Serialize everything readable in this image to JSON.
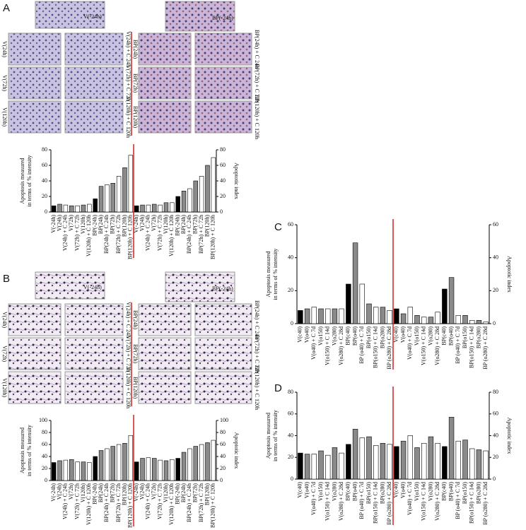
{
  "figure": {
    "panels": [
      {
        "label": "A",
        "controls": [
          "V(-24h)",
          "BP(-24h)"
        ],
        "left_rows": [
          [
            "V(24h)",
            "V(24h) + C 24h"
          ],
          [
            "V(72h)",
            "V(72h) + C 72h"
          ],
          [
            "V(120h)",
            "V(120h) + C 120h"
          ]
        ],
        "right_rows": [
          [
            "BP(24h)",
            "BP(24h) + C 24h"
          ],
          [
            "BP(72h)",
            "BP(72h) + C 72h"
          ],
          [
            "BP(120h)",
            "BP(120h) + C 120h"
          ]
        ]
      },
      {
        "label": "B",
        "controls": [
          "V(-24h)",
          "BP(-24h)"
        ],
        "left_rows": [
          [
            "V(24h)",
            "V(24h) + C 24h"
          ],
          [
            "V(72h)",
            "V(72h) + C 72h"
          ],
          [
            "V(120h)",
            "V(120h) + C 120h"
          ]
        ],
        "right_rows": [
          [
            "BP(24h)",
            "BP(24h) + C 24h"
          ],
          [
            "BP(72h)",
            "BP(72h) + C 72h"
          ],
          [
            "BP(120h)",
            "BP(120h) + C 120h"
          ]
        ]
      },
      {
        "label": "C"
      },
      {
        "label": "D"
      }
    ]
  },
  "chart_data": [
    {
      "type": "bar",
      "ylabel": [
        "Apoptosis measured",
        "in terms of % intensity"
      ],
      "y2label": "Apoptotic index",
      "ylim": [
        0,
        80
      ],
      "yticks": [
        0,
        20,
        40,
        60,
        80
      ],
      "y2lim": [
        0,
        80
      ],
      "y2ticks": [
        0,
        20,
        40,
        60,
        80
      ],
      "bar_colors": [
        "#000000",
        "#8a8a8a",
        "#ffffff",
        "#8a8a8a",
        "#ffffff",
        "#8a8a8a",
        "#ffffff",
        "#000000",
        "#8a8a8a",
        "#ffffff",
        "#8a8a8a",
        "#ffffff",
        "#8a8a8a",
        "#ffffff"
      ],
      "categories": [
        "V(-24h)",
        "V(24h)",
        "V(24h) + C 24h",
        "V(72h)",
        "V(72h) + C 72h",
        "V(120h)",
        "V(120h) + C 120h",
        "BP(-24h)",
        "BP(24h)",
        "BP(24h) + C 24h",
        "BP(72h)",
        "BP(72h) + C 72h",
        "BP(120h)",
        "BP(120h) + C 120h"
      ],
      "series": [
        {
          "values": [
            8,
            10,
            9,
            8,
            8,
            9,
            10,
            17,
            33,
            35,
            37,
            46,
            57,
            73
          ]
        },
        {
          "axis": "y2",
          "values": [
            8,
            9,
            9,
            10,
            9,
            12,
            12,
            20,
            27,
            30,
            40,
            46,
            60,
            70
          ]
        }
      ]
    },
    {
      "type": "bar",
      "ylabel": [
        "Apoptosis measured",
        "in terms of % intensity"
      ],
      "y2label": "Apoptotic index",
      "ylim": [
        0,
        100
      ],
      "yticks": [
        0,
        20,
        40,
        60,
        80,
        100
      ],
      "y2lim": [
        0,
        100
      ],
      "y2ticks": [
        0,
        20,
        40,
        60,
        80,
        100
      ],
      "bar_colors": [
        "#000000",
        "#8a8a8a",
        "#ffffff",
        "#8a8a8a",
        "#ffffff",
        "#8a8a8a",
        "#ffffff",
        "#000000",
        "#8a8a8a",
        "#ffffff",
        "#8a8a8a",
        "#ffffff",
        "#8a8a8a",
        "#ffffff"
      ],
      "categories": [
        "V(-24h)",
        "V(24h)",
        "V(24h) + C 24h",
        "V(72h)",
        "V(72h) + C 72h",
        "V(120h)",
        "V(120h) + C 120h",
        "BP(-24h)",
        "BP(24h)",
        "BP(24h) + C 24h",
        "BP(72h)",
        "BP(72h) + C 72h",
        "BP(120h)",
        "BP(120h) + C 120h"
      ],
      "series": [
        {
          "values": [
            30,
            33,
            34,
            35,
            31,
            31,
            30,
            40,
            50,
            53,
            57,
            60,
            62,
            75
          ]
        },
        {
          "axis": "y2",
          "values": [
            31,
            37,
            38,
            37,
            34,
            33,
            35,
            37,
            47,
            53,
            57,
            60,
            63,
            67
          ]
        }
      ]
    },
    {
      "type": "bar",
      "ylabel": [
        "Apoptosis measured",
        "in terms of % intensity"
      ],
      "y2label": "Apoptotic index",
      "ylim": [
        0,
        60
      ],
      "yticks": [
        0,
        20,
        40,
        60
      ],
      "y2lim": [
        0,
        60
      ],
      "y2ticks": [
        0,
        20,
        40,
        60
      ],
      "bar_colors": [
        "#000000",
        "#8a8a8a",
        "#ffffff",
        "#8a8a8a",
        "#ffffff",
        "#8a8a8a",
        "#ffffff",
        "#000000",
        "#8a8a8a",
        "#ffffff",
        "#8a8a8a",
        "#ffffff",
        "#8a8a8a",
        "#ffffff"
      ],
      "categories": [
        "V(c40)",
        "V(o40)",
        "V(o40) + C 7d",
        "V(o150)",
        "V(o150) + C 14d",
        "V(o280)",
        "V(o280) + C 28d",
        "BP(c40)",
        "BP(o40)",
        "BP (o40) + C 7d",
        "BP(o150)",
        "BP(o150) + C 14d",
        "BP(o280)",
        "BP (o280) + C 28d"
      ],
      "series": [
        {
          "values": [
            8,
            9,
            10,
            9,
            9,
            9,
            9,
            24,
            49,
            24,
            12,
            10,
            10,
            8
          ]
        },
        {
          "axis": "y2",
          "values": [
            9,
            6,
            10,
            5,
            4,
            4,
            7,
            21,
            28,
            5,
            5,
            2,
            2,
            1
          ]
        }
      ]
    },
    {
      "type": "bar",
      "ylabel": [
        "Apoptosis measured",
        "in terms of % intensity"
      ],
      "y2label": "Apoptotic index",
      "ylim": [
        0,
        80
      ],
      "yticks": [
        0,
        20,
        40,
        60,
        80
      ],
      "y2lim": [
        0,
        80
      ],
      "y2ticks": [
        0,
        20,
        40,
        60,
        80
      ],
      "bar_colors": [
        "#000000",
        "#8a8a8a",
        "#ffffff",
        "#8a8a8a",
        "#ffffff",
        "#8a8a8a",
        "#ffffff",
        "#000000",
        "#8a8a8a",
        "#ffffff",
        "#8a8a8a",
        "#ffffff",
        "#8a8a8a",
        "#ffffff"
      ],
      "categories": [
        "V(c40)",
        "V(o40)",
        "V(o40) + C 7d",
        "V(o150)",
        "V(o150) + C 14d",
        "V(o280)",
        "V(o280) + C 28d",
        "BP(c40)",
        "BP(o40)",
        "BP (o40) + C 7d",
        "BP(o150)",
        "BP(o150) + C 14d",
        "BP(o280)",
        "BP (o280) + C 28d"
      ],
      "series": [
        {
          "values": [
            24,
            23,
            23,
            26,
            22,
            29,
            24,
            32,
            46,
            38,
            39,
            31,
            33,
            32
          ]
        },
        {
          "axis": "y2",
          "values": [
            30,
            35,
            40,
            29,
            33,
            39,
            33,
            30,
            57,
            35,
            36,
            28,
            27,
            26
          ]
        }
      ]
    }
  ]
}
